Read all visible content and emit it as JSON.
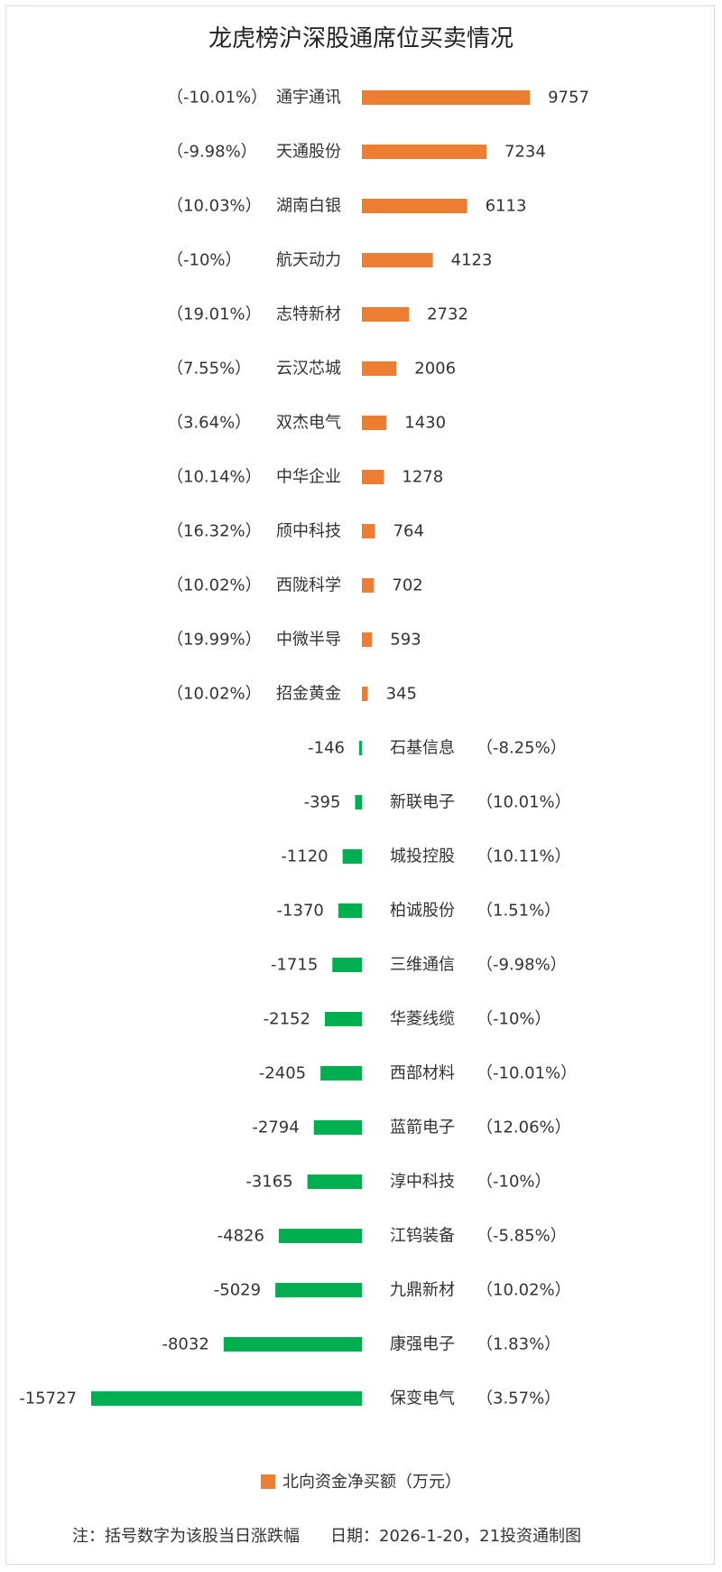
{
  "title": "龙虎榜沪深股通席位买卖情况",
  "legend": "北向资金净买额（万元）",
  "footer": {
    "note": "注：括号数字为该股当日涨跌幅",
    "date": "日期：2026-1-20，21投资通制图"
  },
  "colors": {
    "positive": "#ED7D31",
    "negative": "#00B050"
  },
  "chart_data": {
    "type": "bar",
    "orientation": "horizontal",
    "series_name": "北向资金净买额（万元）",
    "rows": [
      {
        "name": "通宇通讯",
        "value": 9757,
        "change": "（-10.01%）"
      },
      {
        "name": "天通股份",
        "value": 7234,
        "change": "（-9.98%）"
      },
      {
        "name": "湖南白银",
        "value": 6113,
        "change": "（10.03%）"
      },
      {
        "name": "航天动力",
        "value": 4123,
        "change": "（-10%）"
      },
      {
        "name": "志特新材",
        "value": 2732,
        "change": "（19.01%）"
      },
      {
        "name": "云汉芯城",
        "value": 2006,
        "change": "（7.55%）"
      },
      {
        "name": "双杰电气",
        "value": 1430,
        "change": "（3.64%）"
      },
      {
        "name": "中华企业",
        "value": 1278,
        "change": "（10.14%）"
      },
      {
        "name": "颀中科技",
        "value": 764,
        "change": "（16.32%）"
      },
      {
        "name": "西陇科学",
        "value": 702,
        "change": "（10.02%）"
      },
      {
        "name": "中微半导",
        "value": 593,
        "change": "（19.99%）"
      },
      {
        "name": "招金黄金",
        "value": 345,
        "change": "（10.02%）"
      },
      {
        "name": "石基信息",
        "value": -146,
        "change": "（-8.25%）"
      },
      {
        "name": "新联电子",
        "value": -395,
        "change": "（10.01%）"
      },
      {
        "name": "城投控股",
        "value": -1120,
        "change": "（10.11%）"
      },
      {
        "name": "柏诚股份",
        "value": -1370,
        "change": "（1.51%）"
      },
      {
        "name": "三维通信",
        "value": -1715,
        "change": "（-9.98%）"
      },
      {
        "name": "华菱线缆",
        "value": -2152,
        "change": "（-10%）"
      },
      {
        "name": "西部材料",
        "value": -2405,
        "change": "（-10.01%）"
      },
      {
        "name": "蓝箭电子",
        "value": -2794,
        "change": "（12.06%）"
      },
      {
        "name": "淳中科技",
        "value": -3165,
        "change": "（-10%）"
      },
      {
        "name": "江钨装备",
        "value": -4826,
        "change": "（-5.85%）"
      },
      {
        "name": "九鼎新材",
        "value": -5029,
        "change": "（10.02%）"
      },
      {
        "name": "康强电子",
        "value": -8032,
        "change": "（1.83%）"
      },
      {
        "name": "保变电气",
        "value": -15727,
        "change": "（3.57%）"
      }
    ]
  }
}
